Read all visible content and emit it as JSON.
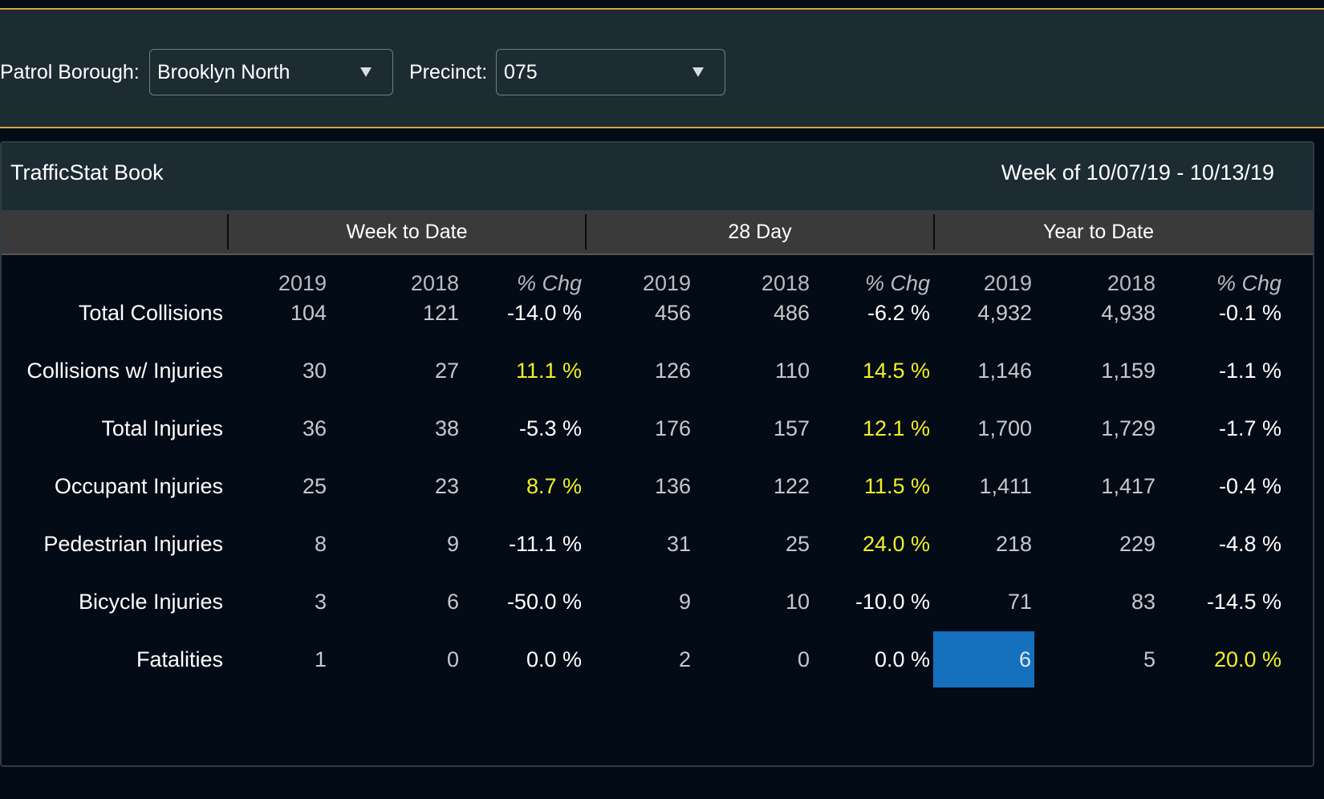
{
  "filters": {
    "borough_label": "Patrol Borough:",
    "borough_value": "Brooklyn North",
    "precinct_label": "Precinct:",
    "precinct_value": "075",
    "dropdown_icon": "caret-down-icon"
  },
  "panel": {
    "title": "TrafficStat Book",
    "week": "Week of 10/07/19 - 10/13/19"
  },
  "groups": [
    "Week to Date",
    "28 Day",
    "Year to Date"
  ],
  "columns": [
    "2019",
    "2018",
    "% Chg",
    "2019",
    "2018",
    "% Chg",
    "2019",
    "2018",
    "% Chg"
  ],
  "rows": [
    {
      "label": "Total Collisions",
      "values": [
        "104",
        "121",
        "-14.0 %",
        "456",
        "486",
        "-6.2 %",
        "4,932",
        "4,938",
        "-0.1 %"
      ]
    },
    {
      "label": "Collisions w/ Injuries",
      "values": [
        "30",
        "27",
        "11.1 %",
        "126",
        "110",
        "14.5 %",
        "1,146",
        "1,159",
        "-1.1 %"
      ]
    },
    {
      "label": "Total Injuries",
      "values": [
        "36",
        "38",
        "-5.3 %",
        "176",
        "157",
        "12.1 %",
        "1,700",
        "1,729",
        "-1.7 %"
      ]
    },
    {
      "label": "Occupant Injuries",
      "values": [
        "25",
        "23",
        "8.7 %",
        "136",
        "122",
        "11.5 %",
        "1,411",
        "1,417",
        "-0.4 %"
      ]
    },
    {
      "label": "Pedestrian Injuries",
      "values": [
        "8",
        "9",
        "-11.1 %",
        "31",
        "25",
        "24.0 %",
        "218",
        "229",
        "-4.8 %"
      ]
    },
    {
      "label": "Bicycle Injuries",
      "values": [
        "3",
        "6",
        "-50.0 %",
        "9",
        "10",
        "-10.0 %",
        "71",
        "83",
        "-14.5 %"
      ]
    },
    {
      "label": "Fatalities",
      "values": [
        "1",
        "0",
        "0.0 %",
        "2",
        "0",
        "0.0 %",
        "6",
        "5",
        "20.0 %"
      ]
    }
  ],
  "colors": {
    "increase": "#f3f024",
    "selected_cell": "#1570bd",
    "accent_border": "#d9a43a"
  },
  "selected_cell": {
    "row": "Fatalities",
    "column": "Year to Date 2019"
  }
}
